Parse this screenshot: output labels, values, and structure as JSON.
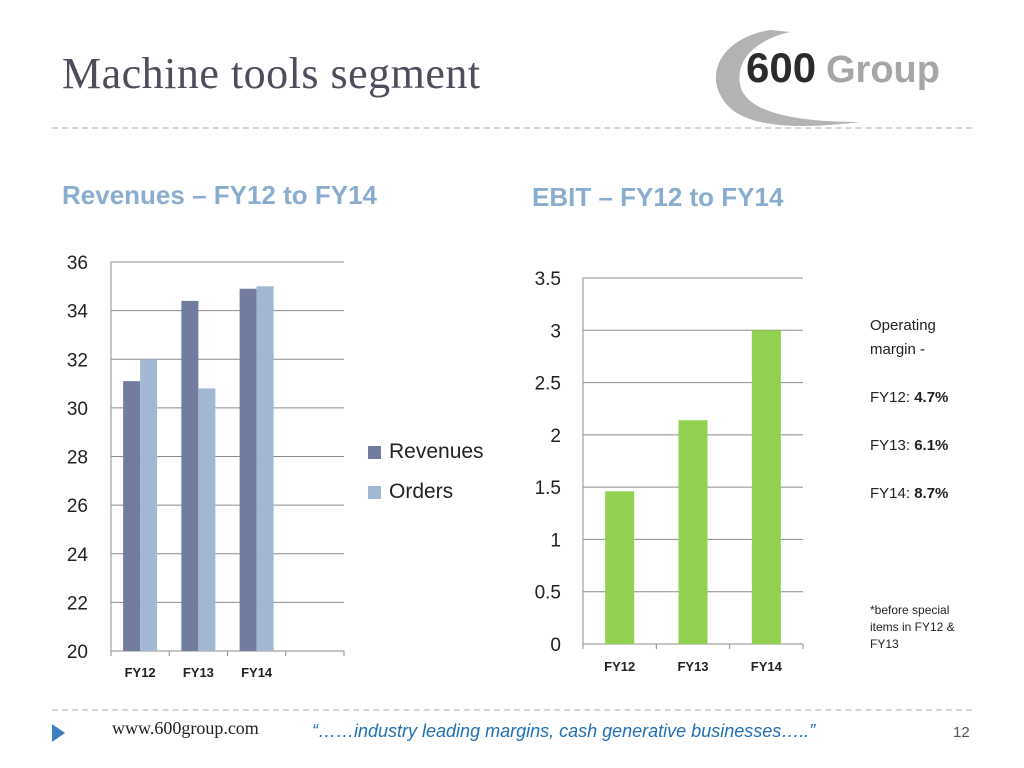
{
  "slide": {
    "title": "Machine tools segment",
    "logo_text_number": "600",
    "logo_text_word": "Group",
    "footer_url": "www.600group.com",
    "footer_quote": "“……industry leading margins, cash generative businesses…..”",
    "page_number": "12"
  },
  "notes": {
    "heading_line1": "Operating",
    "heading_line2": "margin -",
    "fy12_label": "FY12: ",
    "fy12_value": "4.7%",
    "fy13_label": "FY13: ",
    "fy13_value": "6.1%",
    "fy14_label": "FY14: ",
    "fy14_value": "8.7%",
    "footnote": "*before special items in FY12 & FY13"
  },
  "colors": {
    "revenues": "#717c9f",
    "orders": "#a2b8d2",
    "ebit": "#92d050",
    "gridline": "#8c8c8c",
    "subhead": "#8aaccf"
  },
  "chart_data": [
    {
      "type": "bar",
      "title": "Revenues – FY12 to FY14",
      "categories": [
        "FY12",
        "FY13",
        "FY14"
      ],
      "series": [
        {
          "name": "Revenues",
          "values": [
            31.1,
            34.4,
            34.9
          ]
        },
        {
          "name": "Orders",
          "values": [
            32.0,
            30.8,
            35.0
          ]
        }
      ],
      "ylim": [
        20,
        36
      ],
      "yticks": [
        "20",
        "22",
        "24",
        "26",
        "28",
        "30",
        "32",
        "34",
        "36"
      ],
      "grid": true,
      "legend": "right"
    },
    {
      "type": "bar",
      "title": "EBIT – FY12 to FY14",
      "categories": [
        "FY12",
        "FY13",
        "FY14"
      ],
      "series": [
        {
          "values": [
            1.46,
            2.14,
            3.0
          ]
        }
      ],
      "ylim": [
        0,
        3.5
      ],
      "yticks": [
        "0",
        "0.5",
        "1",
        "1.5",
        "2",
        "2.5",
        "3",
        "3.5"
      ],
      "grid": true,
      "legend": "none"
    }
  ]
}
